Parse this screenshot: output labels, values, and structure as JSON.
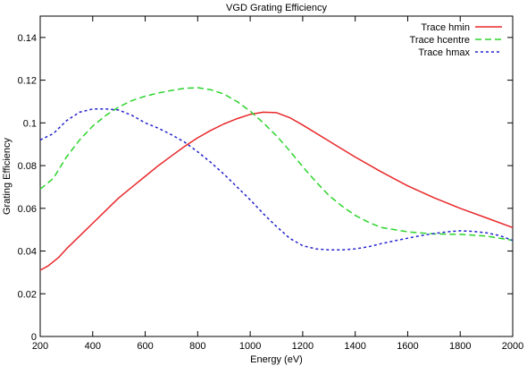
{
  "chart_data": {
    "type": "line",
    "title": "VGD Grating Efficiency",
    "xlabel": "Energy (eV)",
    "ylabel": "Grating Efficiency",
    "xlim": [
      200,
      2000
    ],
    "ylim": [
      0,
      0.15
    ],
    "xticks": [
      200,
      400,
      600,
      800,
      1000,
      1200,
      1400,
      1600,
      1800,
      2000
    ],
    "yticks": [
      0,
      0.02,
      0.04,
      0.06,
      0.08,
      0.1,
      0.12,
      0.14
    ],
    "grid": false,
    "legend_position": "top-right",
    "series": [
      {
        "name": "Trace hmin",
        "color": "#e8282a",
        "dash": "solid",
        "x": [
          200,
          230,
          270,
          300,
          350,
          400,
          450,
          500,
          550,
          600,
          650,
          700,
          750,
          800,
          850,
          900,
          950,
          1000,
          1050,
          1100,
          1150,
          1200,
          1300,
          1400,
          1500,
          1600,
          1700,
          1800,
          1900,
          2000
        ],
        "y": [
          0.031,
          0.033,
          0.037,
          0.041,
          0.047,
          0.053,
          0.059,
          0.065,
          0.07,
          0.075,
          0.08,
          0.0845,
          0.089,
          0.093,
          0.0965,
          0.0995,
          0.102,
          0.104,
          0.105,
          0.1048,
          0.1025,
          0.099,
          0.0915,
          0.084,
          0.077,
          0.0705,
          0.065,
          0.06,
          0.0555,
          0.051
        ]
      },
      {
        "name": "Trace hcentre",
        "color": "#2bd42b",
        "dash": "dashed",
        "x": [
          200,
          250,
          300,
          350,
          400,
          450,
          500,
          550,
          600,
          650,
          700,
          750,
          800,
          850,
          900,
          950,
          1000,
          1050,
          1100,
          1150,
          1200,
          1250,
          1300,
          1350,
          1400,
          1450,
          1500,
          1600,
          1700,
          1800,
          1900,
          2000
        ],
        "y": [
          0.069,
          0.074,
          0.084,
          0.092,
          0.0985,
          0.1035,
          0.1075,
          0.1105,
          0.1125,
          0.114,
          0.1152,
          0.1162,
          0.1165,
          0.1155,
          0.1135,
          0.11,
          0.1055,
          0.1,
          0.094,
          0.087,
          0.0795,
          0.0725,
          0.066,
          0.061,
          0.0567,
          0.0535,
          0.051,
          0.049,
          0.048,
          0.0478,
          0.047,
          0.045
        ]
      },
      {
        "name": "Trace hmax",
        "color": "#2222cc",
        "dash": "dotted",
        "x": [
          200,
          250,
          300,
          350,
          400,
          450,
          500,
          550,
          600,
          650,
          700,
          750,
          800,
          850,
          900,
          950,
          1000,
          1050,
          1100,
          1150,
          1200,
          1250,
          1300,
          1350,
          1400,
          1450,
          1500,
          1550,
          1600,
          1650,
          1700,
          1750,
          1800,
          1850,
          1900,
          1950,
          2000
        ],
        "y": [
          0.092,
          0.095,
          0.101,
          0.105,
          0.1065,
          0.1065,
          0.106,
          0.1035,
          0.1,
          0.0975,
          0.0945,
          0.091,
          0.0865,
          0.0815,
          0.076,
          0.07,
          0.064,
          0.0575,
          0.0515,
          0.046,
          0.0425,
          0.041,
          0.0405,
          0.0405,
          0.041,
          0.042,
          0.0435,
          0.0448,
          0.046,
          0.0472,
          0.0482,
          0.049,
          0.0495,
          0.0492,
          0.0485,
          0.0472,
          0.045
        ]
      }
    ]
  }
}
